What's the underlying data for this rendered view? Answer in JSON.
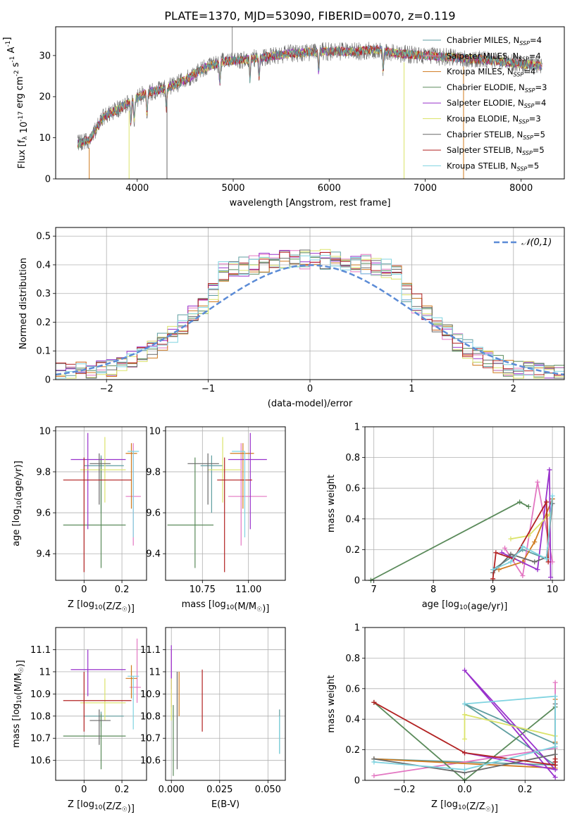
{
  "figure_title": "PLATE=1370, MJD=53090, FIBERID=0070, z=0.119",
  "models": [
    {
      "name": "Chabrier MILES",
      "nssp": 4,
      "color": "#5f9ea0"
    },
    {
      "name": "Salpeter MILES",
      "nssp": 4,
      "color": "#e377c2"
    },
    {
      "name": "Kroupa MILES",
      "nssp": 4,
      "color": "#d07a1e"
    },
    {
      "name": "Chabrier ELODIE",
      "nssp": 3,
      "color": "#5a8a5a"
    },
    {
      "name": "Salpeter ELODIE",
      "nssp": 4,
      "color": "#9932cc"
    },
    {
      "name": "Kroupa ELODIE",
      "nssp": 3,
      "color": "#dbe36a"
    },
    {
      "name": "Chabrier STELIB",
      "nssp": 5,
      "color": "#696969"
    },
    {
      "name": "Salpeter STELIB",
      "nssp": 5,
      "color": "#b22222"
    },
    {
      "name": "Kroupa STELIB",
      "nssp": 5,
      "color": "#7fd3e0"
    }
  ],
  "chart_data": [
    {
      "id": "spectrum",
      "type": "line",
      "title": "PLATE=1370, MJD=53090, FIBERID=0070, z=0.119",
      "xlabel": "wavelength [Angstrom, rest frame]",
      "ylabel": "Flux [f_λ 10^-17 erg cm^-2 s^-1 A^-1]",
      "xlim": [
        3150,
        8450
      ],
      "ylim": [
        0,
        37
      ],
      "xticks": [
        4000,
        5000,
        6000,
        7000,
        8000
      ],
      "yticks": [
        0,
        10,
        20,
        30
      ],
      "grid": false,
      "legend": "top-right",
      "continuum": [
        [
          3380,
          8.5
        ],
        [
          3500,
          9.5
        ],
        [
          3650,
          15
        ],
        [
          3800,
          17
        ],
        [
          3950,
          19
        ],
        [
          4100,
          21
        ],
        [
          4300,
          22
        ],
        [
          4500,
          24
        ],
        [
          4700,
          27
        ],
        [
          4900,
          28.5
        ],
        [
          5100,
          29
        ],
        [
          5300,
          29.5
        ],
        [
          5600,
          30.5
        ],
        [
          5900,
          31
        ],
        [
          6100,
          31
        ],
        [
          6300,
          31
        ],
        [
          6500,
          31.5
        ],
        [
          6700,
          30.5
        ],
        [
          7000,
          30
        ],
        [
          7300,
          29.5
        ],
        [
          7600,
          29
        ],
        [
          8000,
          28
        ],
        [
          8220,
          27.5
        ]
      ],
      "absorption_lines": [
        3934,
        3969,
        4102,
        4304,
        4861,
        5175,
        5270,
        5890,
        6563
      ],
      "dropouts": [
        [
          3500,
          0
        ],
        [
          3915,
          0
        ],
        [
          4310,
          0
        ],
        [
          6780,
          0
        ],
        [
          7400,
          0
        ]
      ],
      "spike": [
        4990,
        37
      ]
    },
    {
      "id": "residual-histogram",
      "type": "step",
      "xlabel": "(data-model)/error",
      "ylabel": "Normed distribution",
      "xlim": [
        -2.5,
        2.5
      ],
      "ylim": [
        0,
        0.53
      ],
      "xticks": [
        -2,
        -1,
        0,
        1,
        2
      ],
      "yticks": [
        0.0,
        0.1,
        0.2,
        0.3,
        0.4,
        0.5
      ],
      "grid": true,
      "legend": "top-right",
      "reference": {
        "label": "𝒩(0,1)",
        "color": "#5b8bd6",
        "mean": 0,
        "sigma": 1
      },
      "bin_width": 0.1
    },
    {
      "id": "age-vs-Z",
      "type": "errorbar",
      "xlabel": "Z [log10(Z/Z☉)]",
      "ylabel": "age  [log10(age/yr)]",
      "xlim": [
        -0.15,
        0.33
      ],
      "ylim": [
        9.27,
        10.02
      ],
      "xticks": [
        0.0,
        0.2
      ],
      "yticks": [
        9.4,
        9.6,
        9.8,
        10.0
      ],
      "grid": true,
      "points": [
        {
          "model": 0,
          "x": 0.09,
          "y": 9.83,
          "xerr": [
            0.09,
            0.12
          ],
          "yerr": [
            0.23,
            0.05
          ]
        },
        {
          "model": 1,
          "x": 0.26,
          "y": 9.68,
          "xerr": [
            0.04,
            0.04
          ],
          "yerr": [
            0.24,
            0.26
          ]
        },
        {
          "model": 2,
          "x": 0.25,
          "y": 9.89,
          "xerr": [
            0.03,
            0.03
          ],
          "yerr": [
            0.27,
            0.05
          ]
        },
        {
          "model": 3,
          "x": 0.09,
          "y": 9.54,
          "xerr": [
            0.2,
            0.13
          ],
          "yerr": [
            0.21,
            0.33
          ]
        },
        {
          "model": 4,
          "x": 0.02,
          "y": 9.86,
          "xerr": [
            0.09,
            0.2
          ],
          "yerr": [
            0.34,
            0.13
          ]
        },
        {
          "model": 5,
          "x": 0.11,
          "y": 9.81,
          "xerr": [
            0.13,
            0.11
          ],
          "yerr": [
            0.16,
            0.16
          ]
        },
        {
          "model": 6,
          "x": 0.08,
          "y": 9.84,
          "xerr": [
            0.05,
            0.06
          ],
          "yerr": [
            0.2,
            0.05
          ]
        },
        {
          "model": 7,
          "x": 0.0,
          "y": 9.76,
          "xerr": [
            0.11,
            0.25
          ],
          "yerr": [
            0.45,
            0.11
          ]
        },
        {
          "model": 8,
          "x": 0.26,
          "y": 9.9,
          "xerr": [
            0.03,
            0.03
          ],
          "yerr": [
            0.42,
            0.0
          ]
        }
      ]
    },
    {
      "id": "age-vs-mass",
      "type": "errorbar",
      "xlabel": "mass [log10(M/M☉)]",
      "ylabel": "",
      "xlim": [
        10.55,
        11.2
      ],
      "ylim": [
        9.27,
        10.02
      ],
      "xticks": [
        10.75,
        11.0
      ],
      "xticklabels": [
        "10.75",
        "11.00"
      ],
      "yticks": [
        9.4,
        9.6,
        9.8,
        10.0
      ],
      "grid": true,
      "points": [
        {
          "model": 0,
          "x": 10.8,
          "y": 9.83,
          "xerr": [
            0.06,
            0.06
          ],
          "yerr": [
            0.23,
            0.05
          ]
        },
        {
          "model": 1,
          "x": 10.96,
          "y": 9.68,
          "xerr": [
            0.07,
            0.14
          ],
          "yerr": [
            0.24,
            0.26
          ]
        },
        {
          "model": 2,
          "x": 10.97,
          "y": 9.89,
          "xerr": [
            0.07,
            0.06
          ],
          "yerr": [
            0.27,
            0.05
          ]
        },
        {
          "model": 3,
          "x": 10.71,
          "y": 9.54,
          "xerr": [
            0.15,
            0.1
          ],
          "yerr": [
            0.21,
            0.33
          ]
        },
        {
          "model": 4,
          "x": 11.01,
          "y": 9.86,
          "xerr": [
            0.12,
            0.09
          ],
          "yerr": [
            0.34,
            0.13
          ]
        },
        {
          "model": 5,
          "x": 10.86,
          "y": 9.81,
          "xerr": [
            0.08,
            0.1
          ],
          "yerr": [
            0.16,
            0.16
          ]
        },
        {
          "model": 6,
          "x": 10.78,
          "y": 9.84,
          "xerr": [
            0.11,
            0.06
          ],
          "yerr": [
            0.2,
            0.05
          ]
        },
        {
          "model": 7,
          "x": 10.87,
          "y": 9.76,
          "xerr": [
            0.04,
            0.15
          ],
          "yerr": [
            0.45,
            0.11
          ]
        },
        {
          "model": 8,
          "x": 10.98,
          "y": 9.9,
          "xerr": [
            0.07,
            0.0
          ],
          "yerr": [
            0.42,
            0.0
          ]
        }
      ]
    },
    {
      "id": "mass-vs-Z",
      "type": "errorbar",
      "xlabel": "Z [log10(Z/Z☉)]",
      "ylabel": "mass [log10(M/M☉)]",
      "xlim": [
        -0.15,
        0.33
      ],
      "ylim": [
        10.51,
        11.2
      ],
      "xticks": [
        0.0,
        0.2
      ],
      "yticks": [
        10.6,
        10.7,
        10.8,
        10.9,
        11.0,
        11.1
      ],
      "grid": true,
      "points": [
        {
          "model": 0,
          "x": 0.09,
          "y": 10.8,
          "xerr": [
            0.09,
            0.12
          ],
          "yerr": [
            0.05,
            0.02
          ]
        },
        {
          "model": 1,
          "x": 0.28,
          "y": 10.93,
          "xerr": [
            0.04,
            0.02
          ],
          "yerr": [
            0.07,
            0.22
          ]
        },
        {
          "model": 2,
          "x": 0.25,
          "y": 10.97,
          "xerr": [
            0.03,
            0.03
          ],
          "yerr": [
            0.09,
            0.06
          ]
        },
        {
          "model": 3,
          "x": 0.09,
          "y": 10.71,
          "xerr": [
            0.2,
            0.13
          ],
          "yerr": [
            0.15,
            0.1
          ]
        },
        {
          "model": 4,
          "x": 0.02,
          "y": 11.01,
          "xerr": [
            0.09,
            0.2
          ],
          "yerr": [
            0.12,
            0.09
          ]
        },
        {
          "model": 5,
          "x": 0.11,
          "y": 10.86,
          "xerr": [
            0.13,
            0.11
          ],
          "yerr": [
            0.08,
            0.11
          ]
        },
        {
          "model": 6,
          "x": 0.08,
          "y": 10.78,
          "xerr": [
            0.05,
            0.06
          ],
          "yerr": [
            0.11,
            0.05
          ]
        },
        {
          "model": 7,
          "x": 0.0,
          "y": 10.87,
          "xerr": [
            0.11,
            0.25
          ],
          "yerr": [
            0.14,
            0.13
          ]
        },
        {
          "model": 8,
          "x": 0.26,
          "y": 10.98,
          "xerr": [
            0.03,
            0.03
          ],
          "yerr": [
            0.24,
            0.0
          ]
        }
      ]
    },
    {
      "id": "mass-vs-EBV",
      "type": "errorbar",
      "xlabel": "E(B-V)",
      "ylabel": "",
      "xlim": [
        -0.003,
        0.059
      ],
      "ylim": [
        10.51,
        11.2
      ],
      "xticks": [
        0.0,
        0.025,
        0.05
      ],
      "xticklabels": [
        "0.000",
        "0.025",
        "0.050"
      ],
      "yticks": [
        10.6,
        10.7,
        10.8,
        10.9,
        11.0,
        11.1
      ],
      "grid": true,
      "points": [
        {
          "model": 0,
          "x": 0.056,
          "y": 10.72,
          "xerr": [
            0,
            0
          ],
          "yerr": [
            0.09,
            0.11
          ]
        },
        {
          "model": 1,
          "x": 0.0,
          "y": 10.93,
          "xerr": [
            0,
            0
          ],
          "yerr": [
            0.09,
            0.17
          ]
        },
        {
          "model": 2,
          "x": 0.004,
          "y": 10.9,
          "xerr": [
            0,
            0
          ],
          "yerr": [
            0.1,
            0.1
          ]
        },
        {
          "model": 3,
          "x": 0.001,
          "y": 10.75,
          "xerr": [
            0,
            0
          ],
          "yerr": [
            0.22,
            0.1
          ]
        },
        {
          "model": 4,
          "x": 0.0,
          "y": 11.02,
          "xerr": [
            0,
            0
          ],
          "yerr": [
            0.1,
            0.1
          ]
        },
        {
          "model": 5,
          "x": 0.0,
          "y": 10.86,
          "xerr": [
            0,
            0
          ],
          "yerr": [
            0.08,
            0.11
          ]
        },
        {
          "model": 6,
          "x": 0.003,
          "y": 10.85,
          "xerr": [
            0,
            0
          ],
          "yerr": [
            0.29,
            0.15
          ]
        },
        {
          "model": 7,
          "x": 0.016,
          "y": 10.87,
          "xerr": [
            0,
            0
          ],
          "yerr": [
            0.14,
            0.14
          ]
        },
        {
          "model": 8,
          "x": 0.056,
          "y": 10.71,
          "xerr": [
            0,
            0
          ],
          "yerr": [
            0.08,
            0.09
          ]
        }
      ]
    },
    {
      "id": "weight-vs-age",
      "type": "line",
      "xlabel": "age  [log10(age/yr)]",
      "ylabel": "mass weight",
      "xlim": [
        6.85,
        10.2
      ],
      "ylim": [
        0,
        1.0
      ],
      "xticks": [
        7,
        8,
        9,
        10
      ],
      "yticks": [
        0.0,
        0.2,
        0.4,
        0.6,
        0.8,
        1.0
      ],
      "grid": true,
      "series": [
        {
          "model": 0,
          "x": [
            9.0,
            9.5,
            9.9,
            10.0
          ],
          "y": [
            0.07,
            0.2,
            0.14,
            0.53
          ]
        },
        {
          "model": 1,
          "x": [
            9.2,
            9.5,
            9.75,
            10.0
          ],
          "y": [
            0.21,
            0.03,
            0.64,
            0.12
          ]
        },
        {
          "model": 2,
          "x": [
            9.1,
            9.5,
            9.7,
            10.0
          ],
          "y": [
            0.07,
            0.12,
            0.25,
            0.53
          ]
        },
        {
          "model": 3,
          "x": [
            6.95,
            9.45,
            9.6
          ],
          "y": [
            0.0,
            0.51,
            0.48
          ]
        },
        {
          "model": 4,
          "x": [
            9.15,
            9.75,
            9.95,
            9.97
          ],
          "y": [
            0.18,
            0.07,
            0.72,
            0.02
          ]
        },
        {
          "model": 5,
          "x": [
            9.3,
            9.6,
            9.95
          ],
          "y": [
            0.27,
            0.29,
            0.43
          ]
        },
        {
          "model": 6,
          "x": [
            9.0,
            9.3,
            9.7,
            9.9,
            10.0
          ],
          "y": [
            0.05,
            0.17,
            0.12,
            0.15,
            0.5
          ]
        },
        {
          "model": 7,
          "x": [
            9.0,
            9.05,
            9.35,
            9.9,
            9.93
          ],
          "y": [
            0.01,
            0.18,
            0.14,
            0.51,
            0.12
          ]
        },
        {
          "model": 8,
          "x": [
            9.0,
            9.3,
            9.5,
            9.9,
            10.0
          ],
          "y": [
            0.07,
            0.12,
            0.22,
            0.14,
            0.55
          ]
        }
      ]
    },
    {
      "id": "weight-vs-Z",
      "type": "line",
      "xlabel": "Z [log10(Z/Z☉)]",
      "ylabel": "mass weight",
      "xlim": [
        -0.33,
        0.33
      ],
      "ylim": [
        0,
        1.0
      ],
      "xticks": [
        -0.2,
        0.0,
        0.2
      ],
      "xticklabels": [
        "−0.2",
        "0.0",
        "0.2"
      ],
      "yticks": [
        0.0,
        0.2,
        0.4,
        0.6,
        0.8,
        1.0
      ],
      "grid": true,
      "series": [
        {
          "model": 0,
          "x": [
            -0.3,
            0.3,
            0.0,
            0.3
          ],
          "y": [
            0.14,
            0.1,
            0.5,
            0.24
          ]
        },
        {
          "model": 1,
          "x": [
            -0.3,
            0.3,
            0.3,
            0.3
          ],
          "y": [
            0.03,
            0.21,
            0.64,
            0.12
          ]
        },
        {
          "model": 2,
          "x": [
            -0.3,
            0.3,
            0.3,
            0.3
          ],
          "y": [
            0.14,
            0.08,
            0.53,
            0.25
          ]
        },
        {
          "model": 3,
          "x": [
            -0.3,
            0.0,
            0.3
          ],
          "y": [
            0.51,
            0.0,
            0.48
          ]
        },
        {
          "model": 4,
          "x": [
            0.0,
            0.3,
            0.0,
            0.3
          ],
          "y": [
            0.18,
            0.07,
            0.72,
            0.02
          ]
        },
        {
          "model": 5,
          "x": [
            0.0,
            0.0,
            0.3
          ],
          "y": [
            0.27,
            0.43,
            0.29
          ]
        },
        {
          "model": 6,
          "x": [
            -0.3,
            0.0,
            0.3,
            0.3,
            0.3
          ],
          "y": [
            0.14,
            0.05,
            0.17,
            0.12,
            0.5
          ]
        },
        {
          "model": 7,
          "x": [
            -0.3,
            0.0,
            0.3,
            0.3,
            0.3
          ],
          "y": [
            0.51,
            0.18,
            0.1,
            0.14,
            0.12
          ]
        },
        {
          "model": 8,
          "x": [
            -0.3,
            0.0,
            0.3,
            0.3,
            0.0
          ],
          "y": [
            0.12,
            0.07,
            0.22,
            0.55,
            0.5
          ]
        }
      ]
    }
  ]
}
